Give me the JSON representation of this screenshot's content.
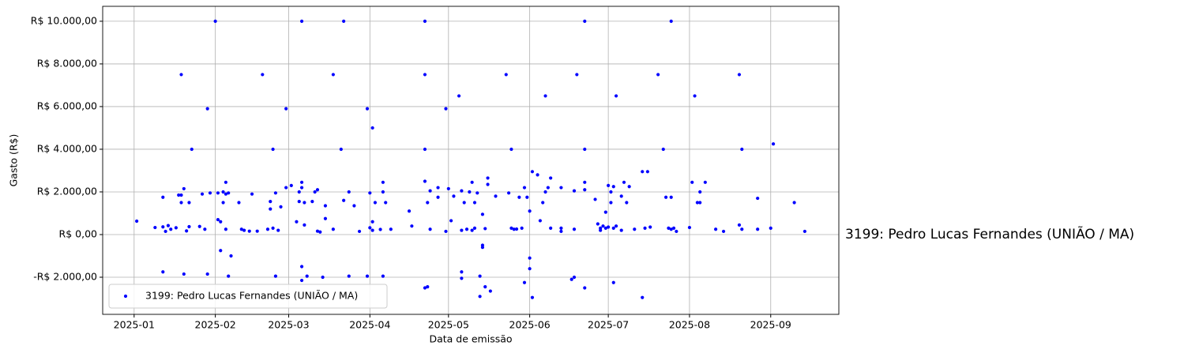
{
  "chart_data": {
    "type": "scatter",
    "x_label": "Data de emissão",
    "y_label": "Gasto (R$)",
    "annotation": "3199: Pedro Lucas Fernandes (UNIÃO / MA)",
    "annotation_color": "#0000ff",
    "legend": "lower left",
    "grid": true,
    "xlim": [
      -12,
      269
    ],
    "xticks": [
      {
        "value": 0,
        "label": "2025-01"
      },
      {
        "value": 31,
        "label": "2025-02"
      },
      {
        "value": 59,
        "label": "2025-03"
      },
      {
        "value": 90,
        "label": "2025-04"
      },
      {
        "value": 120,
        "label": "2025-05"
      },
      {
        "value": 151,
        "label": "2025-06"
      },
      {
        "value": 181,
        "label": "2025-07"
      },
      {
        "value": 212,
        "label": "2025-08"
      },
      {
        "value": 243,
        "label": "2025-09"
      }
    ],
    "ylim": [
      -3740,
      10700
    ],
    "yticks": [
      {
        "value": -2000,
        "label": "-R$ 2.000,00"
      },
      {
        "value": 0,
        "label": "R$ 0,00"
      },
      {
        "value": 2000,
        "label": "R$ 2.000,00"
      },
      {
        "value": 4000,
        "label": "R$ 4.000,00"
      },
      {
        "value": 6000,
        "label": "R$ 6.000,00"
      },
      {
        "value": 8000,
        "label": "R$ 8.000,00"
      },
      {
        "value": 10000,
        "label": "R$ 10.000,00"
      }
    ],
    "x": [
      1,
      8,
      11,
      11,
      11,
      12,
      13,
      14,
      16,
      17,
      18,
      18,
      18,
      19,
      19,
      20,
      21,
      21,
      22,
      25,
      26,
      27,
      28,
      28,
      29,
      31,
      32,
      32,
      33,
      33,
      34,
      34,
      35,
      35,
      35,
      36,
      36,
      37,
      40,
      41,
      42,
      44,
      45,
      47,
      49,
      51,
      52,
      52,
      53,
      53,
      54,
      54,
      55,
      56,
      58,
      58,
      60,
      62,
      63,
      63,
      64,
      64,
      64,
      64,
      64,
      65,
      65,
      66,
      68,
      69,
      70,
      70,
      71,
      72,
      73,
      73,
      76,
      76,
      79,
      80,
      80,
      82,
      82,
      84,
      86,
      89,
      89,
      90,
      90,
      91,
      91,
      91,
      92,
      94,
      95,
      95,
      95,
      96,
      98,
      105,
      106,
      111,
      111,
      111,
      111,
      111,
      112,
      112,
      113,
      113,
      116,
      116,
      119,
      119,
      120,
      121,
      122,
      124,
      125,
      125,
      125,
      125,
      126,
      127,
      128,
      129,
      129,
      130,
      130,
      131,
      132,
      132,
      133,
      133,
      133,
      134,
      134,
      135,
      135,
      136,
      138,
      142,
      143,
      144,
      144,
      145,
      146,
      147,
      148,
      149,
      149,
      150,
      151,
      151,
      151,
      152,
      152,
      154,
      155,
      156,
      157,
      157,
      158,
      159,
      159,
      163,
      163,
      163,
      167,
      168,
      168,
      168,
      169,
      172,
      172,
      172,
      172,
      172,
      176,
      177,
      178,
      178,
      179,
      180,
      180,
      181,
      181,
      182,
      182,
      183,
      183,
      183,
      184,
      184,
      186,
      186,
      187,
      188,
      189,
      191,
      194,
      196,
      194,
      195,
      197,
      200,
      202,
      203,
      204,
      205,
      205,
      205,
      206,
      207,
      212,
      213,
      214,
      215,
      216,
      216,
      218,
      222,
      225,
      231,
      231,
      232,
      232,
      238,
      238,
      243,
      244,
      252,
      256
    ],
    "series": [
      {
        "name": "3199: Pedro Lucas Fernandes (UNIÃO / MA)",
        "color": "#0000ff",
        "values": [
          630,
          330,
          1750,
          -1750,
          360,
          150,
          420,
          250,
          320,
          1850,
          1850,
          1500,
          7500,
          -1850,
          2150,
          170,
          1500,
          370,
          4000,
          380,
          1900,
          250,
          5900,
          -1850,
          1950,
          10000,
          1950,
          700,
          600,
          -750,
          1500,
          2000,
          2450,
          1900,
          250,
          -1950,
          1950,
          -1000,
          1500,
          250,
          200,
          160,
          1900,
          160,
          7500,
          250,
          1200,
          1550,
          300,
          4000,
          1950,
          -1950,
          200,
          1300,
          5900,
          2200,
          2300,
          600,
          1550,
          2000,
          10000,
          2450,
          2200,
          -1500,
          -2150,
          1500,
          450,
          -1950,
          1550,
          2000,
          2100,
          160,
          120,
          -2000,
          1350,
          750,
          7500,
          250,
          4000,
          10000,
          1600,
          2000,
          -1950,
          1350,
          150,
          5900,
          -1950,
          1950,
          320,
          5000,
          200,
          600,
          1500,
          240,
          2450,
          2000,
          -1950,
          1500,
          250,
          1100,
          400,
          10000,
          7500,
          4000,
          2500,
          -2500,
          -2450,
          1500,
          250,
          2050,
          2200,
          1750,
          5900,
          150,
          2150,
          650,
          1800,
          6500,
          -1750,
          -2050,
          2050,
          200,
          1500,
          250,
          2000,
          2450,
          200,
          1500,
          300,
          1950,
          -1950,
          -2900,
          950,
          -500,
          -600,
          280,
          -2450,
          2350,
          2650,
          -2650,
          1800,
          7500,
          1950,
          300,
          4000,
          250,
          260,
          1750,
          300,
          2200,
          -2250,
          1750,
          1100,
          -1100,
          -1600,
          2950,
          -2950,
          2800,
          650,
          1500,
          6500,
          2000,
          2200,
          2650,
          300,
          2200,
          300,
          150,
          -2100,
          -2000,
          2050,
          250,
          7500,
          10000,
          2450,
          2100,
          4000,
          -2500,
          1650,
          500,
          300,
          200,
          400,
          300,
          1050,
          350,
          2300,
          1500,
          2000,
          2250,
          300,
          -2250,
          6500,
          400,
          1800,
          200,
          2450,
          1500,
          2250,
          250,
          2950,
          2950,
          -2950,
          300,
          350,
          7500,
          4000,
          1750,
          300,
          10000,
          250,
          1750,
          300,
          150,
          330,
          2450,
          6500,
          1500,
          1500,
          2000,
          2450,
          250,
          150,
          7500,
          450,
          4000,
          250,
          1700,
          250,
          300,
          4250,
          1500,
          150
        ]
      }
    ]
  }
}
